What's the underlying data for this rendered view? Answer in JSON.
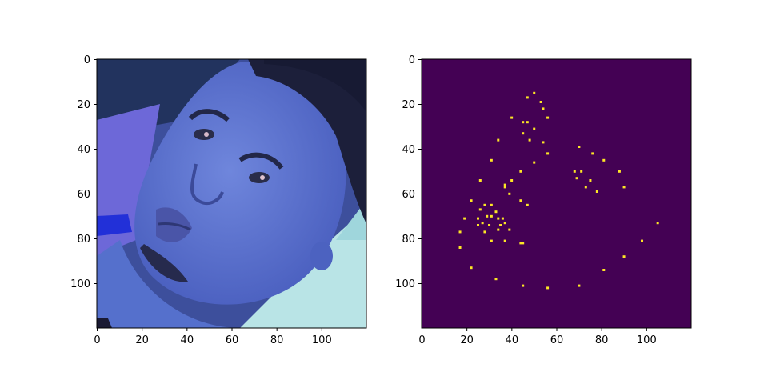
{
  "figure": {
    "panels": [
      {
        "kind": "image",
        "content": "face photograph (blue-tinted)",
        "xlim": [
          0,
          120
        ],
        "ylim": [
          120,
          0
        ],
        "xticks": [
          "0",
          "20",
          "40",
          "60",
          "80",
          "100"
        ],
        "yticks": [
          "0",
          "20",
          "40",
          "60",
          "80",
          "100"
        ]
      },
      {
        "kind": "image",
        "content": "binary point map",
        "background_color": "#440154",
        "point_color": "#fde725",
        "xlim": [
          0,
          120
        ],
        "ylim": [
          120,
          0
        ],
        "xticks": [
          "0",
          "20",
          "40",
          "60",
          "80",
          "100"
        ],
        "yticks": [
          "0",
          "20",
          "40",
          "60",
          "80",
          "100"
        ]
      }
    ]
  },
  "points": [
    [
      50,
      15
    ],
    [
      47,
      17
    ],
    [
      53,
      19
    ],
    [
      54,
      22
    ],
    [
      56,
      26
    ],
    [
      40,
      26
    ],
    [
      45,
      28
    ],
    [
      47,
      28
    ],
    [
      50,
      31
    ],
    [
      45,
      33
    ],
    [
      48,
      36
    ],
    [
      54,
      37
    ],
    [
      34,
      36
    ],
    [
      56,
      42
    ],
    [
      70,
      39
    ],
    [
      76,
      42
    ],
    [
      31,
      45
    ],
    [
      50,
      46
    ],
    [
      81,
      45
    ],
    [
      44,
      50
    ],
    [
      68,
      50
    ],
    [
      71,
      50
    ],
    [
      88,
      50
    ],
    [
      69,
      53
    ],
    [
      75,
      54
    ],
    [
      40,
      54
    ],
    [
      26,
      54
    ],
    [
      37,
      56
    ],
    [
      73,
      57
    ],
    [
      90,
      57
    ],
    [
      37,
      57
    ],
    [
      78,
      59
    ],
    [
      39,
      60
    ],
    [
      22,
      63
    ],
    [
      44,
      63
    ],
    [
      47,
      65
    ],
    [
      26,
      67
    ],
    [
      28,
      65
    ],
    [
      31,
      65
    ],
    [
      33,
      68
    ],
    [
      19,
      71
    ],
    [
      25,
      71
    ],
    [
      27,
      73
    ],
    [
      29,
      70
    ],
    [
      31,
      70
    ],
    [
      34,
      71
    ],
    [
      36,
      71
    ],
    [
      25,
      74
    ],
    [
      30,
      74
    ],
    [
      35,
      74
    ],
    [
      37,
      73
    ],
    [
      17,
      77
    ],
    [
      28,
      77
    ],
    [
      34,
      76
    ],
    [
      39,
      76
    ],
    [
      31,
      81
    ],
    [
      37,
      81
    ],
    [
      44,
      82
    ],
    [
      45,
      82
    ],
    [
      17,
      84
    ],
    [
      98,
      81
    ],
    [
      105,
      73
    ],
    [
      90,
      88
    ],
    [
      81,
      94
    ],
    [
      22,
      93
    ],
    [
      33,
      98
    ],
    [
      45,
      101
    ],
    [
      56,
      102
    ],
    [
      70,
      101
    ]
  ]
}
